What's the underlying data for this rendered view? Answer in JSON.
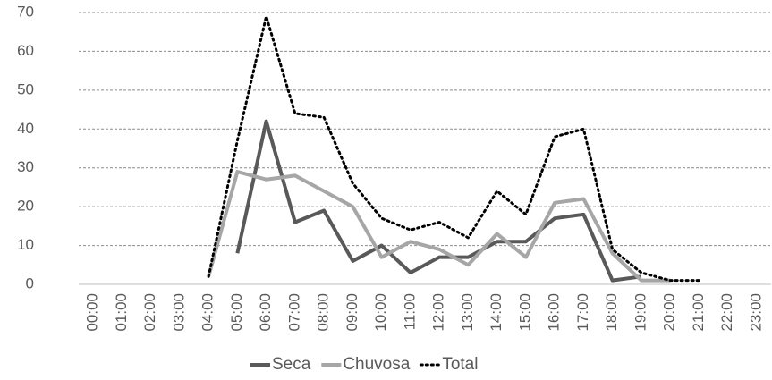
{
  "chart_data": {
    "type": "line",
    "categories": [
      "00:00",
      "01:00",
      "02:00",
      "03:00",
      "04:00",
      "05:00",
      "06:00",
      "07:00",
      "08:00",
      "09:00",
      "10:00",
      "11:00",
      "12:00",
      "13:00",
      "14:00",
      "15:00",
      "16:00",
      "17:00",
      "18:00",
      "19:00",
      "20:00",
      "21:00",
      "22:00",
      "23:00"
    ],
    "series": [
      {
        "name": "Seca",
        "color": "#595959",
        "dash": "solid",
        "values": [
          null,
          null,
          null,
          null,
          null,
          8,
          42,
          16,
          19,
          6,
          10,
          3,
          7,
          7,
          11,
          11,
          17,
          18,
          1,
          2,
          null,
          null,
          null,
          null
        ]
      },
      {
        "name": "Chuvosa",
        "color": "#a6a6a6",
        "dash": "solid",
        "values": [
          null,
          null,
          null,
          null,
          2,
          29,
          27,
          28,
          24,
          20,
          7,
          11,
          9,
          5,
          13,
          7,
          21,
          22,
          8,
          1,
          1,
          null,
          null,
          null
        ]
      },
      {
        "name": "Total",
        "color": "#000000",
        "dash": "dotted",
        "values": [
          null,
          null,
          null,
          null,
          2,
          37,
          69,
          44,
          43,
          26,
          17,
          14,
          16,
          12,
          24,
          18,
          38,
          40,
          9,
          3,
          1,
          1,
          null,
          null
        ]
      }
    ],
    "ylim": [
      0,
      70
    ],
    "yticks": [
      0,
      10,
      20,
      30,
      40,
      50,
      60,
      70
    ],
    "grid": true,
    "legend": "bottom"
  }
}
